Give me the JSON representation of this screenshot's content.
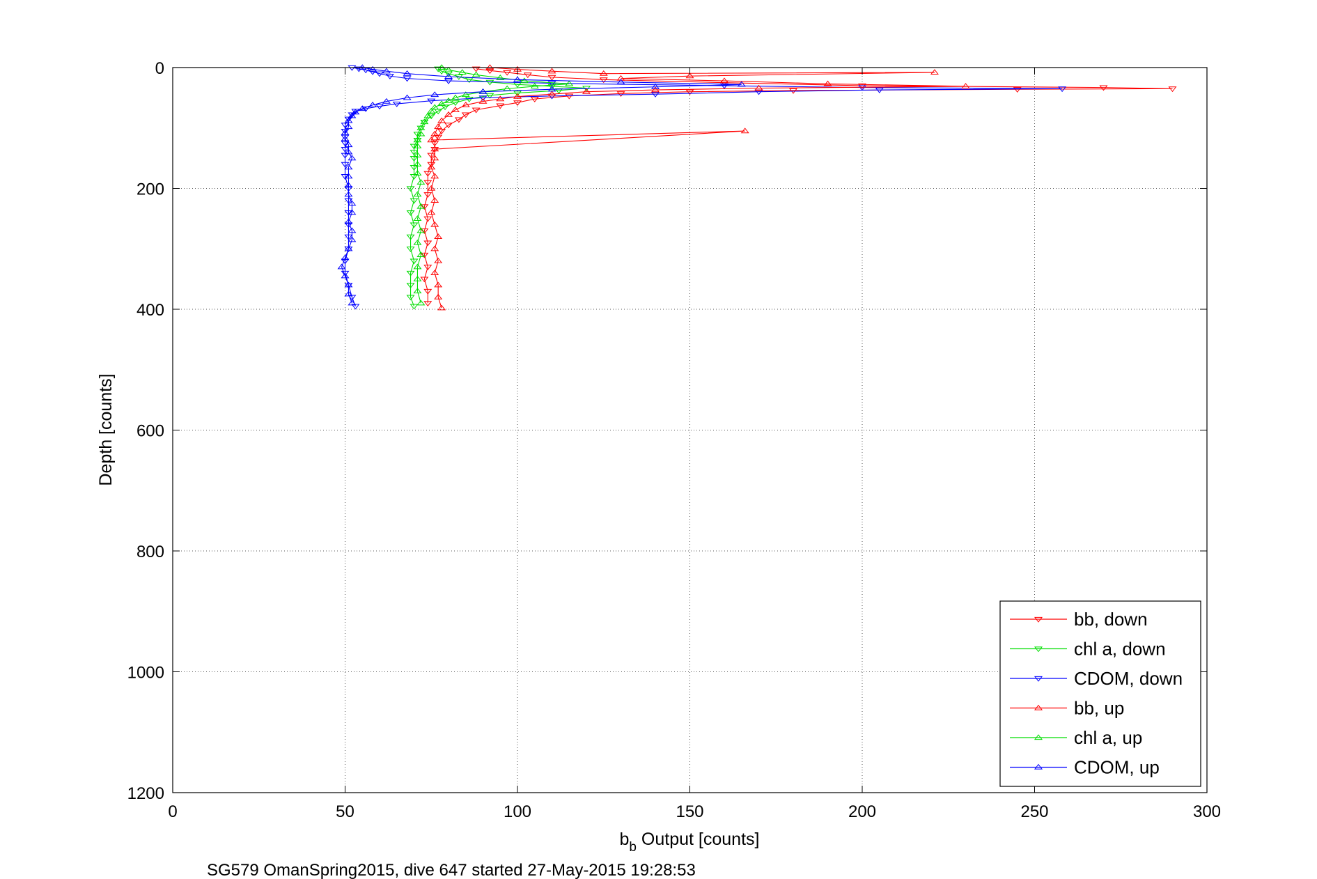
{
  "chart_data": {
    "type": "scatter",
    "xlabel_base": "b",
    "xlabel_sub": "b",
    "xlabel_rest": " Output [counts]",
    "ylabel": "Depth [counts]",
    "caption": "SG579 OmanSpring2015, dive 647 started 27-May-2015 19:28:53",
    "xlim": [
      0,
      300
    ],
    "ylim": [
      0,
      1200
    ],
    "y_reversed": true,
    "grid": true,
    "legend_position": "bottom-right",
    "x_ticks": [
      "0",
      "50",
      "100",
      "150",
      "200",
      "250",
      "300"
    ],
    "y_ticks": [
      "0",
      "200",
      "400",
      "600",
      "800",
      "1000",
      "1200"
    ],
    "series": [
      {
        "name": "bb, down",
        "color": "#ff0000",
        "marker": "triangle-down",
        "points": [
          [
            88,
            2
          ],
          [
            92,
            5
          ],
          [
            97,
            8
          ],
          [
            103,
            12
          ],
          [
            110,
            16
          ],
          [
            125,
            20
          ],
          [
            160,
            25
          ],
          [
            200,
            30
          ],
          [
            270,
            33
          ],
          [
            290,
            35
          ],
          [
            245,
            36
          ],
          [
            180,
            38
          ],
          [
            150,
            40
          ],
          [
            130,
            43
          ],
          [
            115,
            47
          ],
          [
            105,
            52
          ],
          [
            100,
            58
          ],
          [
            95,
            63
          ],
          [
            88,
            70
          ],
          [
            85,
            78
          ],
          [
            83,
            86
          ],
          [
            80,
            95
          ],
          [
            78,
            105
          ],
          [
            77,
            115
          ],
          [
            76,
            125
          ],
          [
            76,
            135
          ],
          [
            75,
            145
          ],
          [
            75,
            160
          ],
          [
            74,
            175
          ],
          [
            74,
            190
          ],
          [
            74,
            210
          ],
          [
            73,
            230
          ],
          [
            74,
            250
          ],
          [
            73,
            270
          ],
          [
            74,
            290
          ],
          [
            73,
            310
          ],
          [
            74,
            330
          ],
          [
            73,
            350
          ],
          [
            74,
            370
          ],
          [
            74,
            390
          ]
        ]
      },
      {
        "name": "chl a, down",
        "color": "#00dd00",
        "marker": "triangle-down",
        "points": [
          [
            77,
            2
          ],
          [
            78,
            6
          ],
          [
            80,
            10
          ],
          [
            83,
            15
          ],
          [
            86,
            20
          ],
          [
            92,
            24
          ],
          [
            100,
            28
          ],
          [
            110,
            31
          ],
          [
            120,
            34
          ],
          [
            112,
            38
          ],
          [
            100,
            42
          ],
          [
            92,
            46
          ],
          [
            86,
            52
          ],
          [
            82,
            58
          ],
          [
            79,
            65
          ],
          [
            77,
            72
          ],
          [
            75,
            80
          ],
          [
            73,
            90
          ],
          [
            72,
            100
          ],
          [
            71,
            110
          ],
          [
            71,
            120
          ],
          [
            70,
            130
          ],
          [
            70,
            140
          ],
          [
            70,
            150
          ],
          [
            70,
            165
          ],
          [
            70,
            180
          ],
          [
            69,
            200
          ],
          [
            70,
            220
          ],
          [
            69,
            240
          ],
          [
            70,
            260
          ],
          [
            69,
            280
          ],
          [
            69,
            300
          ],
          [
            70,
            320
          ],
          [
            69,
            340
          ],
          [
            69,
            360
          ],
          [
            69,
            380
          ],
          [
            70,
            395
          ]
        ]
      },
      {
        "name": "CDOM, down",
        "color": "#0000ff",
        "marker": "triangle-down",
        "points": [
          [
            52,
            0
          ],
          [
            54,
            2
          ],
          [
            56,
            4
          ],
          [
            58,
            7
          ],
          [
            60,
            10
          ],
          [
            63,
            14
          ],
          [
            68,
            18
          ],
          [
            80,
            22
          ],
          [
            110,
            26
          ],
          [
            160,
            30
          ],
          [
            200,
            33
          ],
          [
            258,
            35
          ],
          [
            205,
            37
          ],
          [
            170,
            40
          ],
          [
            140,
            44
          ],
          [
            110,
            47
          ],
          [
            90,
            50
          ],
          [
            75,
            55
          ],
          [
            65,
            60
          ],
          [
            60,
            64
          ],
          [
            56,
            68
          ],
          [
            53,
            72
          ],
          [
            52,
            78
          ],
          [
            51,
            85
          ],
          [
            50,
            95
          ],
          [
            50,
            105
          ],
          [
            50,
            115
          ],
          [
            50,
            125
          ],
          [
            50,
            135
          ],
          [
            50,
            145
          ],
          [
            50,
            160
          ],
          [
            50,
            180
          ],
          [
            51,
            200
          ],
          [
            51,
            220
          ],
          [
            51,
            240
          ],
          [
            51,
            260
          ],
          [
            51,
            280
          ],
          [
            51,
            300
          ],
          [
            50,
            320
          ],
          [
            50,
            340
          ],
          [
            51,
            360
          ],
          [
            52,
            380
          ],
          [
            53,
            395
          ]
        ]
      },
      {
        "name": "bb, up",
        "color": "#ff0000",
        "marker": "triangle-up",
        "points": [
          [
            92,
            0
          ],
          [
            100,
            3
          ],
          [
            110,
            6
          ],
          [
            125,
            10
          ],
          [
            221,
            8
          ],
          [
            150,
            14
          ],
          [
            130,
            18
          ],
          [
            160,
            22
          ],
          [
            190,
            27
          ],
          [
            230,
            31
          ],
          [
            170,
            34
          ],
          [
            140,
            37
          ],
          [
            120,
            40
          ],
          [
            110,
            44
          ],
          [
            100,
            48
          ],
          [
            95,
            52
          ],
          [
            90,
            56
          ],
          [
            85,
            62
          ],
          [
            82,
            70
          ],
          [
            80,
            78
          ],
          [
            78,
            88
          ],
          [
            77,
            98
          ],
          [
            76,
            110
          ],
          [
            75,
            120
          ],
          [
            166,
            105
          ],
          [
            76,
            135
          ],
          [
            76,
            150
          ],
          [
            75,
            165
          ],
          [
            76,
            180
          ],
          [
            75,
            200
          ],
          [
            76,
            220
          ],
          [
            75,
            240
          ],
          [
            76,
            260
          ],
          [
            77,
            280
          ],
          [
            76,
            300
          ],
          [
            77,
            320
          ],
          [
            76,
            340
          ],
          [
            77,
            360
          ],
          [
            77,
            380
          ],
          [
            78,
            398
          ]
        ]
      },
      {
        "name": "chl a, up",
        "color": "#00dd00",
        "marker": "triangle-up",
        "points": [
          [
            78,
            0
          ],
          [
            80,
            4
          ],
          [
            84,
            8
          ],
          [
            88,
            12
          ],
          [
            95,
            17
          ],
          [
            102,
            22
          ],
          [
            115,
            27
          ],
          [
            105,
            31
          ],
          [
            97,
            35
          ],
          [
            90,
            40
          ],
          [
            85,
            45
          ],
          [
            82,
            50
          ],
          [
            80,
            55
          ],
          [
            78,
            60
          ],
          [
            76,
            66
          ],
          [
            75,
            72
          ],
          [
            74,
            80
          ],
          [
            73,
            90
          ],
          [
            72,
            100
          ],
          [
            72,
            110
          ],
          [
            71,
            120
          ],
          [
            71,
            130
          ],
          [
            71,
            145
          ],
          [
            71,
            160
          ],
          [
            71,
            175
          ],
          [
            72,
            190
          ],
          [
            71,
            210
          ],
          [
            72,
            230
          ],
          [
            71,
            250
          ],
          [
            72,
            270
          ],
          [
            71,
            290
          ],
          [
            72,
            310
          ],
          [
            71,
            330
          ],
          [
            71,
            350
          ],
          [
            71,
            370
          ],
          [
            72,
            390
          ]
        ]
      },
      {
        "name": "CDOM, up",
        "color": "#0000ff",
        "marker": "triangle-up",
        "points": [
          [
            55,
            0
          ],
          [
            58,
            3
          ],
          [
            62,
            6
          ],
          [
            68,
            10
          ],
          [
            80,
            15
          ],
          [
            100,
            20
          ],
          [
            130,
            24
          ],
          [
            165,
            28
          ],
          [
            140,
            32
          ],
          [
            110,
            36
          ],
          [
            90,
            40
          ],
          [
            76,
            45
          ],
          [
            68,
            50
          ],
          [
            62,
            56
          ],
          [
            58,
            62
          ],
          [
            55,
            68
          ],
          [
            53,
            74
          ],
          [
            52,
            80
          ],
          [
            51,
            88
          ],
          [
            51,
            98
          ],
          [
            50,
            108
          ],
          [
            50,
            118
          ],
          [
            51,
            128
          ],
          [
            51,
            140
          ],
          [
            52,
            150
          ],
          [
            51,
            165
          ],
          [
            51,
            180
          ],
          [
            51,
            195
          ],
          [
            51,
            210
          ],
          [
            52,
            225
          ],
          [
            52,
            240
          ],
          [
            51,
            255
          ],
          [
            52,
            270
          ],
          [
            52,
            285
          ],
          [
            51,
            300
          ],
          [
            50,
            315
          ],
          [
            49,
            330
          ],
          [
            50,
            345
          ],
          [
            51,
            360
          ],
          [
            51,
            375
          ],
          [
            52,
            390
          ]
        ]
      }
    ]
  }
}
